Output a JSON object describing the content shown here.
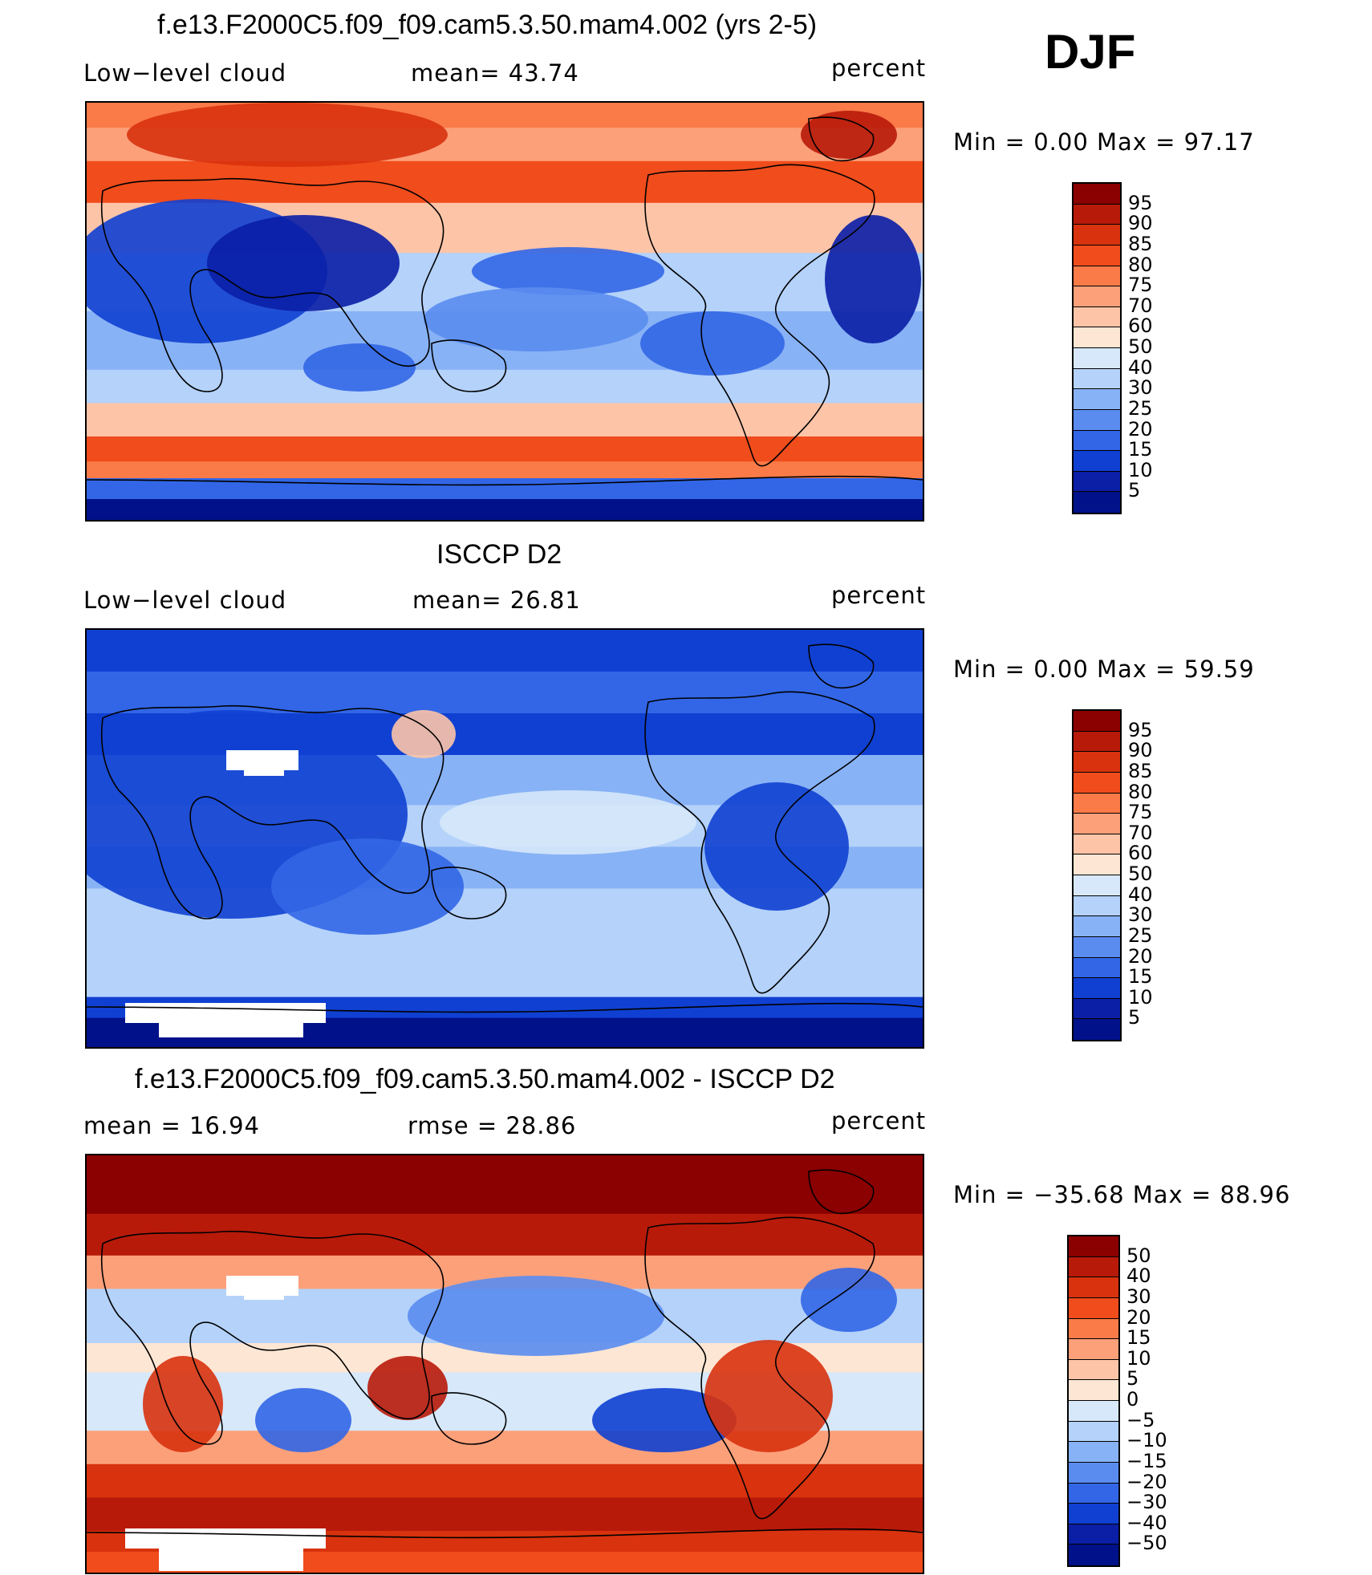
{
  "season": "DJF",
  "panels": [
    {
      "title": "f.e13.F2000C5.f09_f09.cam5.3.50.mam4.002 (yrs 2-5)",
      "left_label": "Low−level cloud",
      "center_label": "mean=   43.74",
      "right_label": "percent",
      "minmax": "Min  =    0.00  Max  =   97.17",
      "colorbar_labels": [
        "95",
        "90",
        "85",
        "80",
        "75",
        "70",
        "60",
        "50",
        "40",
        "30",
        "25",
        "20",
        "15",
        "10",
        "5"
      ],
      "colorbar_colors": [
        "#8b0000",
        "#b81a0a",
        "#d8320e",
        "#f04c1c",
        "#fa7a48",
        "#fca07a",
        "#fdc4a8",
        "#fee6d4",
        "#d6e8fa",
        "#b4d2fa",
        "#88b2f6",
        "#5a8cf0",
        "#3266e6",
        "#1040d2",
        "#0a1ea6",
        "#00118a"
      ],
      "map_mode": "model"
    },
    {
      "title": "ISCCP D2",
      "left_label": "Low−level cloud",
      "center_label": "mean=   26.81",
      "right_label": "percent",
      "minmax": "Min  =    0.00  Max  =   59.59",
      "colorbar_labels": [
        "95",
        "90",
        "85",
        "80",
        "75",
        "70",
        "60",
        "50",
        "40",
        "30",
        "25",
        "20",
        "15",
        "10",
        "5"
      ],
      "colorbar_colors": [
        "#8b0000",
        "#b81a0a",
        "#d8320e",
        "#f04c1c",
        "#fa7a48",
        "#fca07a",
        "#fdc4a8",
        "#fee6d4",
        "#d6e8fa",
        "#b4d2fa",
        "#88b2f6",
        "#5a8cf0",
        "#3266e6",
        "#1040d2",
        "#0a1ea6",
        "#00118a"
      ],
      "map_mode": "obs"
    },
    {
      "title": "f.e13.F2000C5.f09_f09.cam5.3.50.mam4.002 - ISCCP D2",
      "left_label": "mean  =    16.94",
      "center_label": "rmse  =    28.86",
      "right_label": "percent",
      "minmax": "Min  = −35.68  Max  =    88.96",
      "colorbar_labels": [
        "50",
        "40",
        "30",
        "20",
        "15",
        "10",
        "5",
        "0",
        "−5",
        "−10",
        "−15",
        "−20",
        "−30",
        "−40",
        "−50"
      ],
      "colorbar_colors": [
        "#8b0000",
        "#b81a0a",
        "#d8320e",
        "#f04c1c",
        "#fa7a48",
        "#fca07a",
        "#fdc4a8",
        "#fee6d4",
        "#d6e8fa",
        "#b4d2fa",
        "#88b2f6",
        "#5a8cf0",
        "#3266e6",
        "#1040d2",
        "#0a1ea6",
        "#00118a"
      ],
      "map_mode": "diff"
    }
  ]
}
